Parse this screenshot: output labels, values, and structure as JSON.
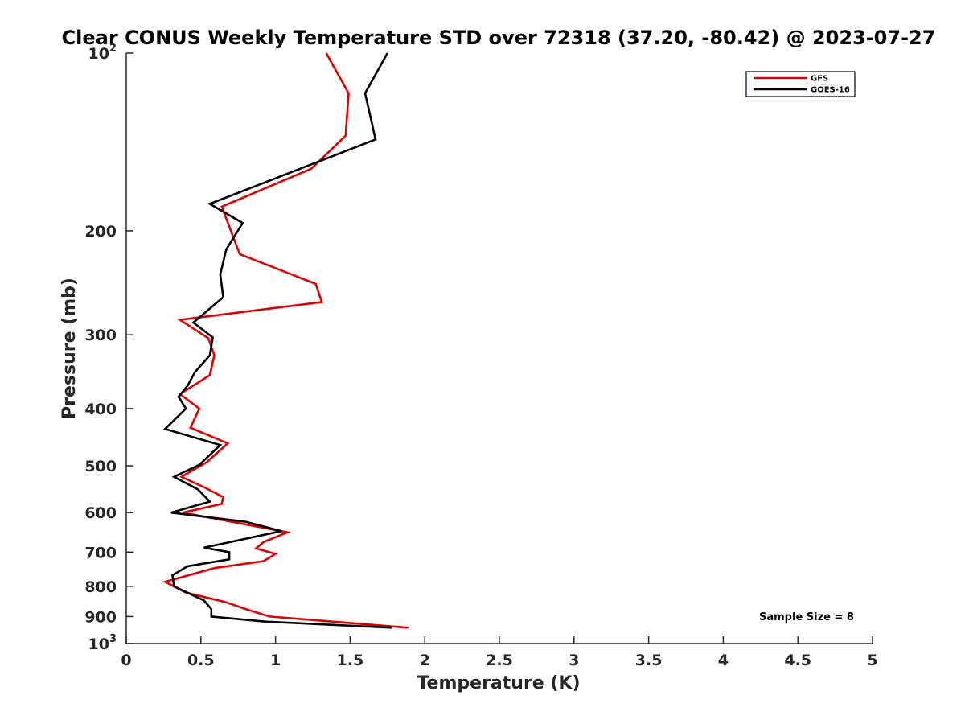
{
  "chart_data": {
    "type": "line",
    "title": "Clear CONUS Weekly Temperature STD over 72318 (37.20, -80.42) @ 2023-07-27",
    "xlabel": "Temperature (K)",
    "ylabel": "Pressure (mb)",
    "xlim": [
      0,
      5
    ],
    "ylim": [
      100,
      1000
    ],
    "yscale": "log",
    "y_reversed": true,
    "x_ticks": [
      {
        "value": 0,
        "label": "0"
      },
      {
        "value": 0.5,
        "label": "0.5"
      },
      {
        "value": 1,
        "label": "1"
      },
      {
        "value": 1.5,
        "label": "1.5"
      },
      {
        "value": 2,
        "label": "2"
      },
      {
        "value": 2.5,
        "label": "2.5"
      },
      {
        "value": 3,
        "label": "3"
      },
      {
        "value": 3.5,
        "label": "3.5"
      },
      {
        "value": 4,
        "label": "4"
      },
      {
        "value": 4.5,
        "label": "4.5"
      },
      {
        "value": 5,
        "label": "5"
      }
    ],
    "y_ticks": [
      {
        "value": 100,
        "base": "10",
        "exp": "2"
      },
      {
        "value": 200,
        "base": "200",
        "exp": ""
      },
      {
        "value": 300,
        "base": "300",
        "exp": ""
      },
      {
        "value": 400,
        "base": "400",
        "exp": ""
      },
      {
        "value": 500,
        "base": "500",
        "exp": ""
      },
      {
        "value": 600,
        "base": "600",
        "exp": ""
      },
      {
        "value": 700,
        "base": "700",
        "exp": ""
      },
      {
        "value": 800,
        "base": "800",
        "exp": ""
      },
      {
        "value": 900,
        "base": "900",
        "exp": ""
      },
      {
        "value": 1000,
        "base": "10",
        "exp": "3"
      }
    ],
    "grid": false,
    "legend_position": "top-right",
    "annotation": "Sample Size = 8",
    "series": [
      {
        "name": "GFS",
        "color": "#e00000",
        "points": [
          {
            "x": 1.34,
            "p": 100
          },
          {
            "x": 1.49,
            "p": 117
          },
          {
            "x": 1.47,
            "p": 138
          },
          {
            "x": 1.24,
            "p": 157
          },
          {
            "x": 0.64,
            "p": 182
          },
          {
            "x": 0.76,
            "p": 219
          },
          {
            "x": 1.27,
            "p": 246
          },
          {
            "x": 1.31,
            "p": 264
          },
          {
            "x": 0.36,
            "p": 283
          },
          {
            "x": 0.55,
            "p": 304
          },
          {
            "x": 0.59,
            "p": 325
          },
          {
            "x": 0.56,
            "p": 351
          },
          {
            "x": 0.36,
            "p": 378
          },
          {
            "x": 0.49,
            "p": 400
          },
          {
            "x": 0.43,
            "p": 431
          },
          {
            "x": 0.68,
            "p": 458
          },
          {
            "x": 0.54,
            "p": 493
          },
          {
            "x": 0.37,
            "p": 522
          },
          {
            "x": 0.53,
            "p": 545
          },
          {
            "x": 0.65,
            "p": 565
          },
          {
            "x": 0.64,
            "p": 580
          },
          {
            "x": 0.38,
            "p": 600
          },
          {
            "x": 1.08,
            "p": 648
          },
          {
            "x": 0.92,
            "p": 673
          },
          {
            "x": 0.87,
            "p": 690
          },
          {
            "x": 1.0,
            "p": 705
          },
          {
            "x": 0.92,
            "p": 725
          },
          {
            "x": 0.59,
            "p": 745
          },
          {
            "x": 0.26,
            "p": 786
          },
          {
            "x": 0.4,
            "p": 820
          },
          {
            "x": 0.66,
            "p": 850
          },
          {
            "x": 0.8,
            "p": 874
          },
          {
            "x": 0.96,
            "p": 900
          },
          {
            "x": 1.89,
            "p": 940
          }
        ]
      },
      {
        "name": "GOES-16",
        "color": "#000000",
        "points": [
          {
            "x": 1.75,
            "p": 100
          },
          {
            "x": 1.6,
            "p": 117
          },
          {
            "x": 1.67,
            "p": 140
          },
          {
            "x": 0.56,
            "p": 180
          },
          {
            "x": 0.78,
            "p": 194
          },
          {
            "x": 0.67,
            "p": 215
          },
          {
            "x": 0.63,
            "p": 237
          },
          {
            "x": 0.65,
            "p": 259
          },
          {
            "x": 0.45,
            "p": 286
          },
          {
            "x": 0.58,
            "p": 303
          },
          {
            "x": 0.56,
            "p": 325
          },
          {
            "x": 0.46,
            "p": 347
          },
          {
            "x": 0.41,
            "p": 366
          },
          {
            "x": 0.35,
            "p": 382
          },
          {
            "x": 0.4,
            "p": 400
          },
          {
            "x": 0.26,
            "p": 433
          },
          {
            "x": 0.63,
            "p": 461
          },
          {
            "x": 0.49,
            "p": 498
          },
          {
            "x": 0.32,
            "p": 522
          },
          {
            "x": 0.48,
            "p": 548
          },
          {
            "x": 0.56,
            "p": 575
          },
          {
            "x": 0.3,
            "p": 600
          },
          {
            "x": 0.8,
            "p": 622
          },
          {
            "x": 1.04,
            "p": 645
          },
          {
            "x": 0.52,
            "p": 688
          },
          {
            "x": 0.69,
            "p": 700
          },
          {
            "x": 0.69,
            "p": 720
          },
          {
            "x": 0.41,
            "p": 740
          },
          {
            "x": 0.31,
            "p": 766
          },
          {
            "x": 0.32,
            "p": 800
          },
          {
            "x": 0.52,
            "p": 845
          },
          {
            "x": 0.57,
            "p": 874
          },
          {
            "x": 0.57,
            "p": 900
          },
          {
            "x": 0.93,
            "p": 918
          },
          {
            "x": 1.78,
            "p": 940
          }
        ]
      }
    ]
  }
}
